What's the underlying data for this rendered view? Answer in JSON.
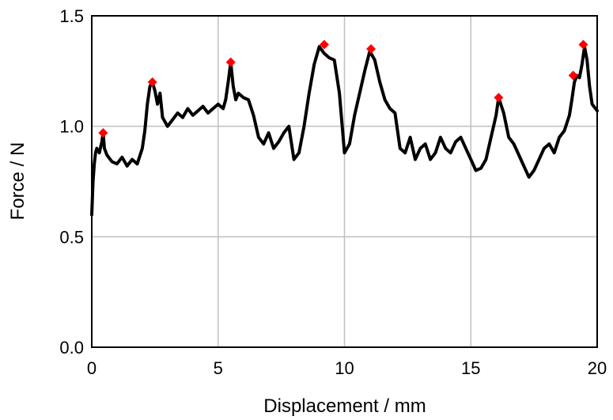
{
  "chart_data": {
    "type": "line",
    "xlabel": "Displacement / mm",
    "ylabel": "Force / N",
    "xlim": [
      0,
      20
    ],
    "ylim": [
      0,
      1.5
    ],
    "xticks": [
      "0",
      "5",
      "10",
      "15",
      "20"
    ],
    "yticks": [
      "0.0",
      "0.5",
      "1.0",
      "1.5"
    ],
    "grid": true,
    "colors": {
      "line": "#000000",
      "markers": "#ff0000",
      "grid": "#bfbfbf"
    },
    "series": [
      {
        "values_x": [
          0,
          0.05,
          0.1,
          0.15,
          0.2,
          0.3,
          0.4,
          0.45,
          0.5,
          0.6,
          0.8,
          1.0,
          1.2,
          1.4,
          1.6,
          1.8,
          2.0,
          2.1,
          2.2,
          2.3,
          2.4,
          2.5,
          2.6,
          2.7,
          2.8,
          2.9,
          3.0,
          3.2,
          3.4,
          3.6,
          3.8,
          4.0,
          4.2,
          4.4,
          4.6,
          4.8,
          5.0,
          5.2,
          5.3,
          5.4,
          5.5,
          5.6,
          5.7,
          5.8,
          6.0,
          6.2,
          6.4,
          6.6,
          6.8,
          7.0,
          7.2,
          7.4,
          7.6,
          7.8,
          8.0,
          8.2,
          8.4,
          8.6,
          8.8,
          9.0,
          9.2,
          9.4,
          9.6,
          9.8,
          10.0,
          10.2,
          10.4,
          10.6,
          10.8,
          11.0,
          11.2,
          11.4,
          11.6,
          11.8,
          12.0,
          12.2,
          12.4,
          12.6,
          12.8,
          13.0,
          13.2,
          13.4,
          13.6,
          13.8,
          14.0,
          14.2,
          14.4,
          14.6,
          14.8,
          15.0,
          15.2,
          15.4,
          15.6,
          15.8,
          16.0,
          16.1,
          16.3,
          16.5,
          16.7,
          16.9,
          17.1,
          17.3,
          17.5,
          17.7,
          17.9,
          18.1,
          18.3,
          18.5,
          18.7,
          18.9,
          19.0,
          19.1,
          19.2,
          19.3,
          19.4,
          19.5,
          19.6,
          19.7,
          19.8,
          20.0
        ],
        "values_y": [
          0.6,
          0.75,
          0.83,
          0.88,
          0.9,
          0.88,
          0.93,
          0.97,
          0.9,
          0.87,
          0.84,
          0.83,
          0.86,
          0.82,
          0.85,
          0.83,
          0.9,
          0.98,
          1.1,
          1.18,
          1.2,
          1.16,
          1.1,
          1.15,
          1.04,
          1.02,
          1.0,
          1.03,
          1.06,
          1.04,
          1.08,
          1.05,
          1.07,
          1.09,
          1.06,
          1.08,
          1.1,
          1.08,
          1.12,
          1.2,
          1.29,
          1.18,
          1.12,
          1.15,
          1.13,
          1.12,
          1.05,
          0.95,
          0.92,
          0.97,
          0.9,
          0.93,
          0.97,
          1.0,
          0.85,
          0.88,
          1.0,
          1.15,
          1.28,
          1.36,
          1.33,
          1.31,
          1.3,
          1.15,
          0.88,
          0.92,
          1.05,
          1.15,
          1.25,
          1.34,
          1.3,
          1.2,
          1.12,
          1.08,
          1.06,
          0.9,
          0.88,
          0.95,
          0.85,
          0.9,
          0.92,
          0.85,
          0.88,
          0.95,
          0.9,
          0.88,
          0.93,
          0.95,
          0.9,
          0.85,
          0.8,
          0.81,
          0.85,
          0.95,
          1.05,
          1.13,
          1.06,
          0.95,
          0.92,
          0.87,
          0.82,
          0.77,
          0.8,
          0.85,
          0.9,
          0.92,
          0.88,
          0.95,
          0.98,
          1.05,
          1.12,
          1.2,
          1.23,
          1.22,
          1.28,
          1.36,
          1.3,
          1.18,
          1.1,
          1.07
        ]
      }
    ],
    "peaks": {
      "x": [
        0.45,
        2.4,
        5.5,
        9.2,
        11.05,
        16.1,
        19.05,
        19.45
      ],
      "y": [
        0.97,
        1.2,
        1.29,
        1.37,
        1.35,
        1.13,
        1.23,
        1.37
      ]
    }
  }
}
